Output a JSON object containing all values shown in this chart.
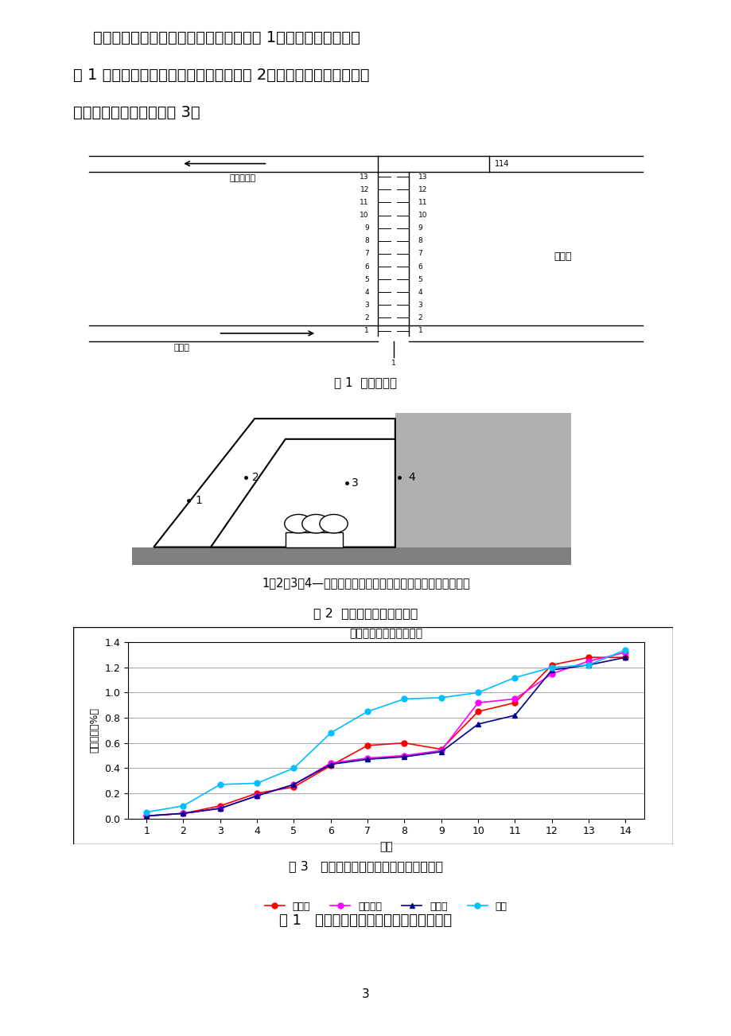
{
  "fig1_caption": "图 1  单元划分图",
  "fig2_caption_line1": "1、2、3、4—采空区、立柱中间、人行道、煤壁瓦斯浓度测点",
  "fig2_caption_line2": "图 2  回采工作面测点布置图",
  "fig3_title": "各测点瓦斯浓度变化曲线",
  "fig3_xlabel": "测点",
  "fig3_ylabel": "瓦斯浓度（%）",
  "fig3_caption": "图 3   工作面各测点倾斜方向瓦斯浓度分布",
  "table1_caption": "表 1   工作面瓦斯浓度及风流参数实测数据",
  "page_number": "3",
  "para_line1": "    工作面瓦斯浓度及风流参数实测数据见表 1。根据单元法原理对",
  "para_line2": "表 1 中实测数据进行处理，处理结果见表 2。不同测点沿工作面倾斜",
  "para_line3": "方向的瓦斯浓度分布见图 3。",
  "label_caicaiqv": "采空区",
  "label_lizhu": "立柱中间",
  "label_renxing": "人行道",
  "label_meiqiang": "煤壁",
  "label_fuzhu": "辅助进风巷",
  "label_jinfeng": "进风巷",
  "label_caikongqu": "采空区",
  "series_caicaiqv": [
    0.02,
    0.04,
    0.1,
    0.2,
    0.25,
    0.42,
    0.58,
    0.6,
    0.55,
    0.85,
    0.92,
    1.22,
    1.28,
    1.28
  ],
  "series_lizhu": [
    0.02,
    0.04,
    0.08,
    0.18,
    0.27,
    0.44,
    0.48,
    0.5,
    0.54,
    0.92,
    0.95,
    1.15,
    1.25,
    1.32
  ],
  "series_renxing": [
    0.02,
    0.04,
    0.08,
    0.18,
    0.27,
    0.43,
    0.47,
    0.49,
    0.53,
    0.75,
    0.82,
    1.18,
    1.22,
    1.28
  ],
  "series_meiqiang": [
    0.05,
    0.1,
    0.27,
    0.28,
    0.4,
    0.68,
    0.85,
    0.95,
    0.96,
    1.0,
    1.12,
    1.2,
    1.22,
    1.34
  ],
  "color_caicaiqv": "#ff0000",
  "color_lizhu": "#ff00ff",
  "color_renxing": "#00008b",
  "color_meiqiang": "#00bfff",
  "yticks": [
    0,
    0.2,
    0.4,
    0.6,
    0.8,
    1.0,
    1.2,
    1.4
  ],
  "xticks": [
    1,
    2,
    3,
    4,
    5,
    6,
    7,
    8,
    9,
    10,
    11,
    12,
    13,
    14
  ]
}
